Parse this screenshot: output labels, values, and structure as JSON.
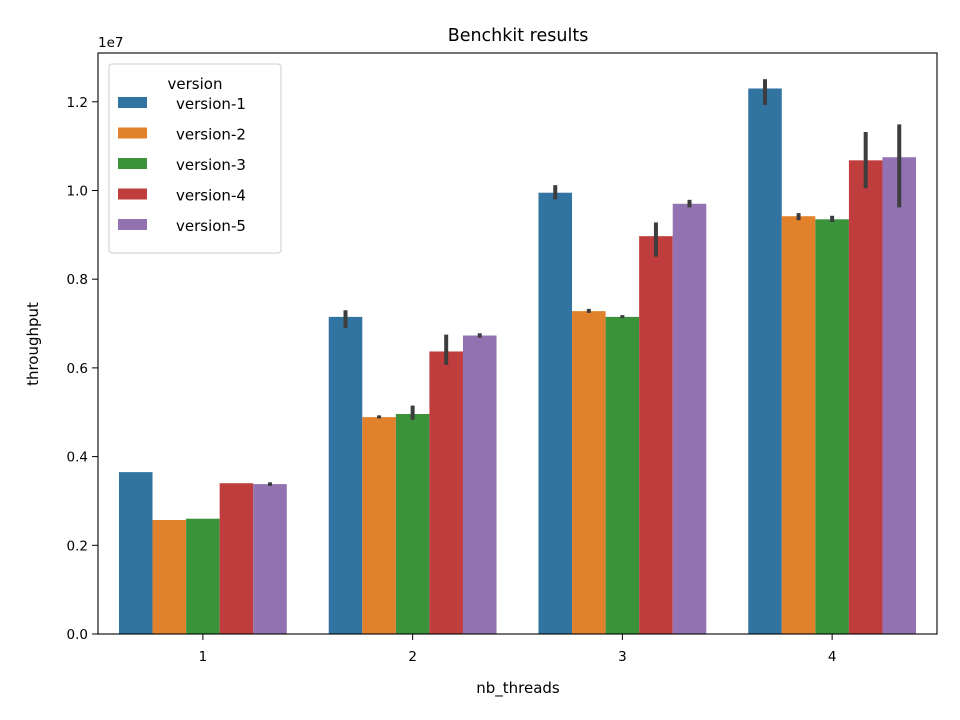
{
  "chart_data": {
    "type": "bar",
    "title": "Benchkit results",
    "xlabel": "nb_threads",
    "ylabel": "throughput",
    "y_scale_label": "1e7",
    "y_scale_factor": 10000000,
    "ylim": [
      0,
      13100000
    ],
    "yticks": [
      0,
      2000000,
      4000000,
      6000000,
      8000000,
      10000000,
      12000000
    ],
    "ytick_labels": [
      "0.0",
      "0.2",
      "0.4",
      "0.6",
      "0.8",
      "1.0",
      "1.2"
    ],
    "categories": [
      "1",
      "2",
      "3",
      "4"
    ],
    "grid": false,
    "legend": {
      "title": "version",
      "position": "top-left"
    },
    "series": [
      {
        "name": "version-1",
        "color": "#3274a1",
        "values": [
          3650000,
          7150000,
          9950000,
          12300000
        ],
        "err_low": [
          3650000,
          6900000,
          9800000,
          11930000
        ],
        "err_high": [
          3650000,
          7300000,
          10120000,
          12510000
        ]
      },
      {
        "name": "version-2",
        "color": "#e1812c",
        "values": [
          2570000,
          4890000,
          7280000,
          9420000
        ],
        "err_low": [
          2570000,
          4860000,
          7240000,
          9330000
        ],
        "err_high": [
          2570000,
          4930000,
          7330000,
          9490000
        ]
      },
      {
        "name": "version-3",
        "color": "#3a923a",
        "values": [
          2600000,
          4960000,
          7150000,
          9350000
        ],
        "err_low": [
          2600000,
          4830000,
          7120000,
          9290000
        ],
        "err_high": [
          2600000,
          5150000,
          7190000,
          9430000
        ]
      },
      {
        "name": "version-4",
        "color": "#c03d3e",
        "values": [
          3400000,
          6370000,
          8970000,
          10680000
        ],
        "err_low": [
          3400000,
          6070000,
          8510000,
          10050000
        ],
        "err_high": [
          3400000,
          6750000,
          9280000,
          11320000
        ]
      },
      {
        "name": "version-5",
        "color": "#9372b2",
        "values": [
          3380000,
          6730000,
          9700000,
          10750000
        ],
        "err_low": [
          3340000,
          6680000,
          9620000,
          9620000
        ],
        "err_high": [
          3420000,
          6780000,
          9790000,
          11490000
        ]
      }
    ]
  }
}
